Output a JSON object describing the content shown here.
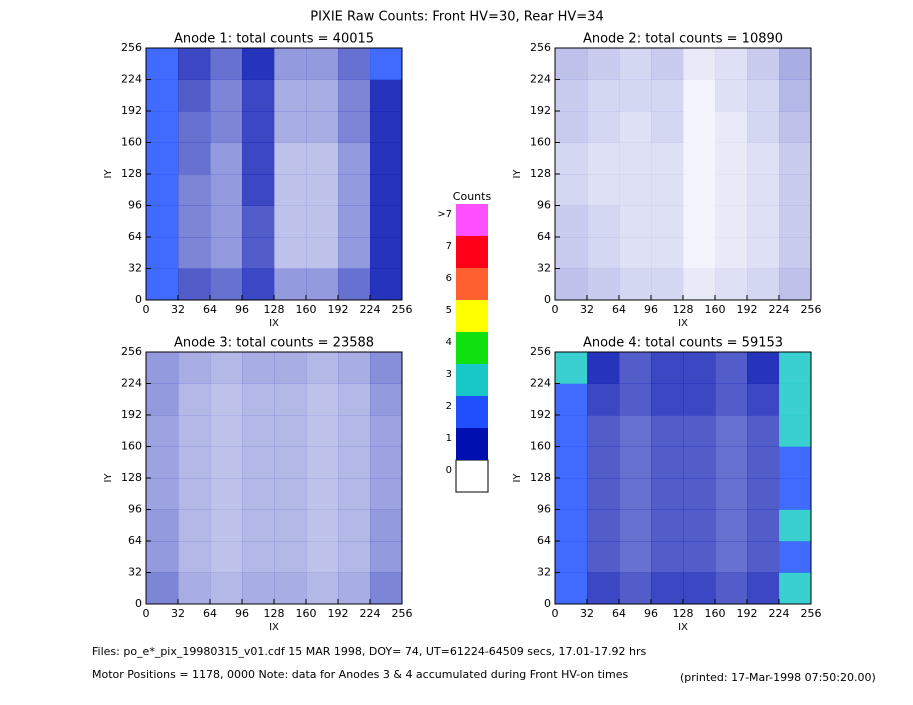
{
  "header": {
    "title": "PIXIE Raw Counts:  Front HV=30, Rear HV=34"
  },
  "colorbar": {
    "title": "Counts",
    "labels": [
      "0",
      "1",
      "2",
      "3",
      "4",
      "5",
      "6",
      "7",
      ">7"
    ],
    "colors": [
      "#ffffff",
      "#0010b0",
      "#2050ff",
      "#18c8c8",
      "#10e010",
      "#ffff00",
      "#ff6030",
      "#ff0018",
      "#ff50ff"
    ]
  },
  "chart_data": [
    {
      "type": "heatmap",
      "title": "Anode 1: total counts = 40015",
      "xlabel": "IX",
      "ylabel": "IY",
      "xlim": [
        0,
        256
      ],
      "ylim": [
        0,
        256
      ],
      "xticks": [
        0,
        32,
        64,
        96,
        128,
        160,
        192,
        224,
        256
      ],
      "yticks": [
        0,
        32,
        64,
        96,
        128,
        160,
        192,
        224,
        256
      ],
      "z": [
        [
          1.6,
          0.8,
          0.7,
          0.9,
          0.5,
          0.5,
          0.7,
          1.3
        ],
        [
          1.5,
          0.6,
          0.5,
          0.8,
          0.3,
          0.3,
          0.5,
          1.2
        ],
        [
          1.5,
          0.6,
          0.5,
          0.8,
          0.3,
          0.3,
          0.5,
          1.2
        ],
        [
          1.5,
          0.6,
          0.5,
          0.9,
          0.3,
          0.3,
          0.5,
          1.2
        ],
        [
          1.6,
          0.7,
          0.5,
          0.9,
          0.3,
          0.3,
          0.5,
          1.3
        ],
        [
          1.6,
          0.7,
          0.6,
          0.9,
          0.4,
          0.4,
          0.6,
          1.3
        ],
        [
          1.7,
          0.8,
          0.6,
          0.9,
          0.4,
          0.4,
          0.6,
          1.4
        ],
        [
          1.8,
          0.9,
          0.7,
          1.0,
          0.5,
          0.5,
          0.7,
          1.5
        ]
      ]
    },
    {
      "type": "heatmap",
      "title": "Anode 2: total counts = 10890",
      "xlabel": "IX",
      "ylabel": "IY",
      "xlim": [
        0,
        256
      ],
      "ylim": [
        0,
        256
      ],
      "xticks": [
        0,
        32,
        64,
        96,
        128,
        160,
        192,
        224,
        256
      ],
      "yticks": [
        0,
        32,
        64,
        96,
        128,
        160,
        192,
        224,
        256
      ],
      "z": [
        [
          0.3,
          0.25,
          0.2,
          0.2,
          0.1,
          0.15,
          0.2,
          0.3
        ],
        [
          0.25,
          0.2,
          0.15,
          0.15,
          0.05,
          0.1,
          0.15,
          0.25
        ],
        [
          0.25,
          0.2,
          0.15,
          0.15,
          0.05,
          0.1,
          0.15,
          0.25
        ],
        [
          0.2,
          0.15,
          0.15,
          0.15,
          0.05,
          0.1,
          0.15,
          0.25
        ],
        [
          0.2,
          0.15,
          0.15,
          0.15,
          0.05,
          0.1,
          0.15,
          0.25
        ],
        [
          0.25,
          0.2,
          0.15,
          0.2,
          0.05,
          0.1,
          0.2,
          0.3
        ],
        [
          0.25,
          0.2,
          0.2,
          0.2,
          0.05,
          0.15,
          0.2,
          0.35
        ],
        [
          0.3,
          0.25,
          0.2,
          0.25,
          0.1,
          0.15,
          0.25,
          0.4
        ]
      ]
    },
    {
      "type": "heatmap",
      "title": "Anode 3: total counts = 23588",
      "xlabel": "IX",
      "ylabel": "IY",
      "xlim": [
        0,
        256
      ],
      "ylim": [
        0,
        256
      ],
      "xticks": [
        0,
        32,
        64,
        96,
        128,
        160,
        192,
        224,
        256
      ],
      "yticks": [
        0,
        32,
        64,
        96,
        128,
        160,
        192,
        224,
        256
      ],
      "z": [
        [
          0.6,
          0.4,
          0.35,
          0.4,
          0.4,
          0.35,
          0.4,
          0.6
        ],
        [
          0.5,
          0.35,
          0.3,
          0.35,
          0.35,
          0.3,
          0.35,
          0.5
        ],
        [
          0.5,
          0.35,
          0.3,
          0.35,
          0.35,
          0.3,
          0.35,
          0.5
        ],
        [
          0.45,
          0.35,
          0.3,
          0.35,
          0.35,
          0.3,
          0.35,
          0.45
        ],
        [
          0.45,
          0.35,
          0.3,
          0.35,
          0.35,
          0.3,
          0.35,
          0.45
        ],
        [
          0.45,
          0.35,
          0.3,
          0.35,
          0.35,
          0.3,
          0.35,
          0.45
        ],
        [
          0.5,
          0.35,
          0.3,
          0.35,
          0.35,
          0.3,
          0.35,
          0.5
        ],
        [
          0.5,
          0.4,
          0.35,
          0.4,
          0.4,
          0.35,
          0.4,
          0.55
        ]
      ]
    },
    {
      "type": "heatmap",
      "title": "Anode 4: total counts = 59153",
      "xlabel": "IX",
      "ylabel": "IY",
      "xlim": [
        0,
        256
      ],
      "ylim": [
        0,
        256
      ],
      "xticks": [
        0,
        32,
        64,
        96,
        128,
        160,
        192,
        224,
        256
      ],
      "yticks": [
        0,
        32,
        64,
        96,
        128,
        160,
        192,
        224,
        256
      ],
      "z": [
        [
          2.4,
          0.9,
          0.8,
          0.9,
          0.9,
          0.8,
          0.9,
          2.6
        ],
        [
          2.2,
          0.8,
          0.7,
          0.8,
          0.8,
          0.7,
          0.8,
          2.4
        ],
        [
          2.3,
          0.8,
          0.7,
          0.8,
          0.8,
          0.7,
          0.8,
          2.5
        ],
        [
          2.2,
          0.8,
          0.7,
          0.8,
          0.8,
          0.7,
          0.8,
          2.4
        ],
        [
          2.2,
          0.8,
          0.7,
          0.8,
          0.8,
          0.7,
          0.8,
          2.4
        ],
        [
          2.3,
          0.8,
          0.7,
          0.8,
          0.8,
          0.7,
          0.8,
          2.5
        ],
        [
          2.4,
          0.9,
          0.8,
          0.9,
          0.9,
          0.8,
          0.9,
          2.6
        ],
        [
          2.5,
          1.0,
          0.8,
          0.9,
          0.9,
          0.8,
          1.0,
          2.7
        ]
      ]
    }
  ],
  "footer": {
    "files": "Files: po_e*_pix_19980315_v01.cdf    15 MAR 1998, DOY= 74, UT=61224-64509 secs, 17.01-17.92 hrs",
    "motor": "Motor Positions = 1178, 0000    Note: data for Anodes 3 & 4 accumulated during Front HV-on times",
    "printed": "(printed: 17-Mar-1998 07:50:20.00)"
  }
}
